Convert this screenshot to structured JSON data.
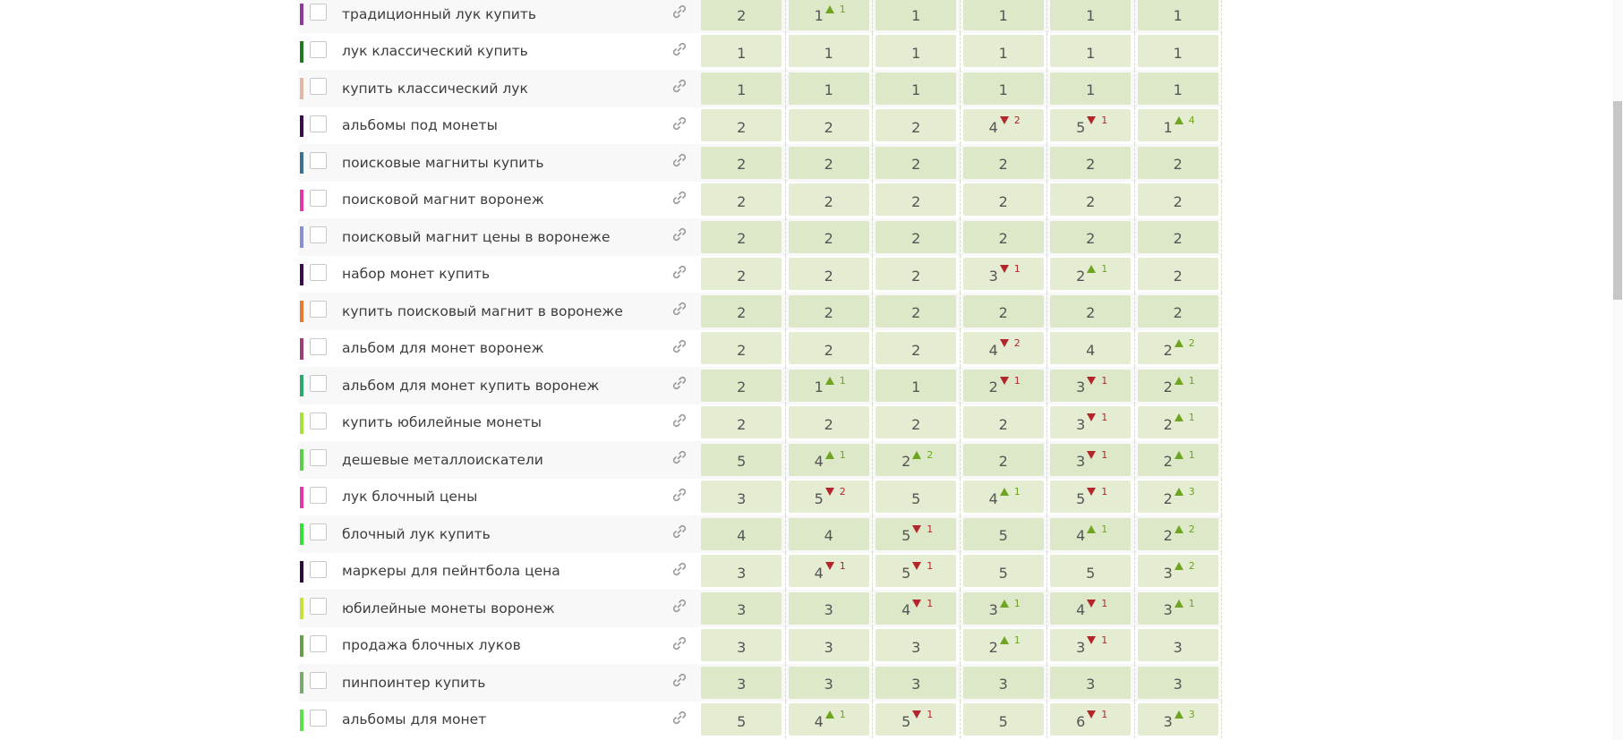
{
  "rows": [
    {
      "keyword": "традиционный лук купить",
      "color": "#8e3c9a",
      "cells": [
        {
          "pos": "2"
        },
        {
          "pos": "1",
          "dir": "up",
          "delta": "1"
        },
        {
          "pos": "1"
        },
        {
          "pos": "1"
        },
        {
          "pos": "1"
        },
        {
          "pos": "1"
        }
      ]
    },
    {
      "keyword": "лук классический купить",
      "color": "#1f7a1f",
      "cells": [
        {
          "pos": "1"
        },
        {
          "pos": "1"
        },
        {
          "pos": "1"
        },
        {
          "pos": "1"
        },
        {
          "pos": "1"
        },
        {
          "pos": "1"
        }
      ]
    },
    {
      "keyword": "купить классический лук",
      "color": "#e0b8a8",
      "cells": [
        {
          "pos": "1"
        },
        {
          "pos": "1"
        },
        {
          "pos": "1"
        },
        {
          "pos": "1"
        },
        {
          "pos": "1"
        },
        {
          "pos": "1"
        }
      ]
    },
    {
      "keyword": "альбомы под монеты",
      "color": "#3a0d4a",
      "cells": [
        {
          "pos": "2"
        },
        {
          "pos": "2"
        },
        {
          "pos": "2"
        },
        {
          "pos": "4",
          "dir": "down",
          "delta": "2"
        },
        {
          "pos": "5",
          "dir": "down",
          "delta": "1"
        },
        {
          "pos": "1",
          "dir": "up",
          "delta": "4"
        }
      ]
    },
    {
      "keyword": "поисковые магниты купить",
      "color": "#3d6f8f",
      "cells": [
        {
          "pos": "2"
        },
        {
          "pos": "2"
        },
        {
          "pos": "2"
        },
        {
          "pos": "2"
        },
        {
          "pos": "2"
        },
        {
          "pos": "2"
        }
      ]
    },
    {
      "keyword": "поисковой магнит воронеж",
      "color": "#e535a8",
      "cells": [
        {
          "pos": "2"
        },
        {
          "pos": "2"
        },
        {
          "pos": "2"
        },
        {
          "pos": "2"
        },
        {
          "pos": "2"
        },
        {
          "pos": "2"
        }
      ]
    },
    {
      "keyword": "поисковый магнит цены в воронеже",
      "color": "#8a8fcf",
      "cells": [
        {
          "pos": "2"
        },
        {
          "pos": "2"
        },
        {
          "pos": "2"
        },
        {
          "pos": "2"
        },
        {
          "pos": "2"
        },
        {
          "pos": "2"
        }
      ]
    },
    {
      "keyword": "набор монет купить",
      "color": "#3a0d4a",
      "cells": [
        {
          "pos": "2"
        },
        {
          "pos": "2"
        },
        {
          "pos": "2"
        },
        {
          "pos": "3",
          "dir": "down",
          "delta": "1"
        },
        {
          "pos": "2",
          "dir": "up",
          "delta": "1"
        },
        {
          "pos": "2"
        }
      ]
    },
    {
      "keyword": "купить поисковый магнит в воронеже",
      "color": "#e57a35",
      "cells": [
        {
          "pos": "2"
        },
        {
          "pos": "2"
        },
        {
          "pos": "2"
        },
        {
          "pos": "2"
        },
        {
          "pos": "2"
        },
        {
          "pos": "2"
        }
      ]
    },
    {
      "keyword": "альбом для монет воронеж",
      "color": "#9c3d78",
      "cells": [
        {
          "pos": "2"
        },
        {
          "pos": "2"
        },
        {
          "pos": "2"
        },
        {
          "pos": "4",
          "dir": "down",
          "delta": "2"
        },
        {
          "pos": "4"
        },
        {
          "pos": "2",
          "dir": "up",
          "delta": "2"
        }
      ]
    },
    {
      "keyword": "альбом для монет купить воронеж",
      "color": "#2aa870",
      "cells": [
        {
          "pos": "2"
        },
        {
          "pos": "1",
          "dir": "up",
          "delta": "1"
        },
        {
          "pos": "1"
        },
        {
          "pos": "2",
          "dir": "down",
          "delta": "1"
        },
        {
          "pos": "3",
          "dir": "down",
          "delta": "1"
        },
        {
          "pos": "2",
          "dir": "up",
          "delta": "1"
        }
      ]
    },
    {
      "keyword": "купить юбилейные монеты",
      "color": "#a8e03a",
      "cells": [
        {
          "pos": "2"
        },
        {
          "pos": "2"
        },
        {
          "pos": "2"
        },
        {
          "pos": "2"
        },
        {
          "pos": "3",
          "dir": "down",
          "delta": "1"
        },
        {
          "pos": "2",
          "dir": "up",
          "delta": "1"
        }
      ]
    },
    {
      "keyword": "дешевые металлоискатели",
      "color": "#5ccf4a",
      "cells": [
        {
          "pos": "5"
        },
        {
          "pos": "4",
          "dir": "up",
          "delta": "1"
        },
        {
          "pos": "2",
          "dir": "up",
          "delta": "2"
        },
        {
          "pos": "2"
        },
        {
          "pos": "3",
          "dir": "down",
          "delta": "1"
        },
        {
          "pos": "2",
          "dir": "up",
          "delta": "1"
        }
      ]
    },
    {
      "keyword": "лук блочный цены",
      "color": "#e535a8",
      "cells": [
        {
          "pos": "3"
        },
        {
          "pos": "5",
          "dir": "down",
          "delta": "2"
        },
        {
          "pos": "5"
        },
        {
          "pos": "4",
          "dir": "up",
          "delta": "1"
        },
        {
          "pos": "5",
          "dir": "down",
          "delta": "1"
        },
        {
          "pos": "2",
          "dir": "up",
          "delta": "3"
        }
      ]
    },
    {
      "keyword": "блочный лук купить",
      "color": "#35e035",
      "cells": [
        {
          "pos": "4"
        },
        {
          "pos": "4"
        },
        {
          "pos": "5",
          "dir": "down",
          "delta": "1"
        },
        {
          "pos": "5"
        },
        {
          "pos": "4",
          "dir": "up",
          "delta": "1"
        },
        {
          "pos": "2",
          "dir": "up",
          "delta": "2"
        }
      ]
    },
    {
      "keyword": "маркеры для пейнтбола цена",
      "color": "#2a0d3a",
      "cells": [
        {
          "pos": "3"
        },
        {
          "pos": "4",
          "dir": "down",
          "delta": "1"
        },
        {
          "pos": "5",
          "dir": "down",
          "delta": "1"
        },
        {
          "pos": "5"
        },
        {
          "pos": "5"
        },
        {
          "pos": "3",
          "dir": "up",
          "delta": "2"
        }
      ]
    },
    {
      "keyword": "юбилейные монеты воронеж",
      "color": "#c8e03a",
      "cells": [
        {
          "pos": "3"
        },
        {
          "pos": "3"
        },
        {
          "pos": "4",
          "dir": "down",
          "delta": "1"
        },
        {
          "pos": "3",
          "dir": "up",
          "delta": "1"
        },
        {
          "pos": "4",
          "dir": "down",
          "delta": "1"
        },
        {
          "pos": "3",
          "dir": "up",
          "delta": "1"
        }
      ]
    },
    {
      "keyword": "продажа блочных луков",
      "color": "#6a9f4a",
      "cells": [
        {
          "pos": "3"
        },
        {
          "pos": "3"
        },
        {
          "pos": "3"
        },
        {
          "pos": "2",
          "dir": "up",
          "delta": "1"
        },
        {
          "pos": "3",
          "dir": "down",
          "delta": "1"
        },
        {
          "pos": "3"
        }
      ]
    },
    {
      "keyword": "пинпоинтер купить",
      "color": "#7aa870",
      "cells": [
        {
          "pos": "3"
        },
        {
          "pos": "3"
        },
        {
          "pos": "3"
        },
        {
          "pos": "3"
        },
        {
          "pos": "3"
        },
        {
          "pos": "3"
        }
      ]
    },
    {
      "keyword": "альбомы для монет",
      "color": "#5ce04a",
      "cells": [
        {
          "pos": "5"
        },
        {
          "pos": "4",
          "dir": "up",
          "delta": "1"
        },
        {
          "pos": "5",
          "dir": "down",
          "delta": "1"
        },
        {
          "pos": "5"
        },
        {
          "pos": "6",
          "dir": "down",
          "delta": "1"
        },
        {
          "pos": "3",
          "dir": "up",
          "delta": "3"
        }
      ]
    }
  ]
}
